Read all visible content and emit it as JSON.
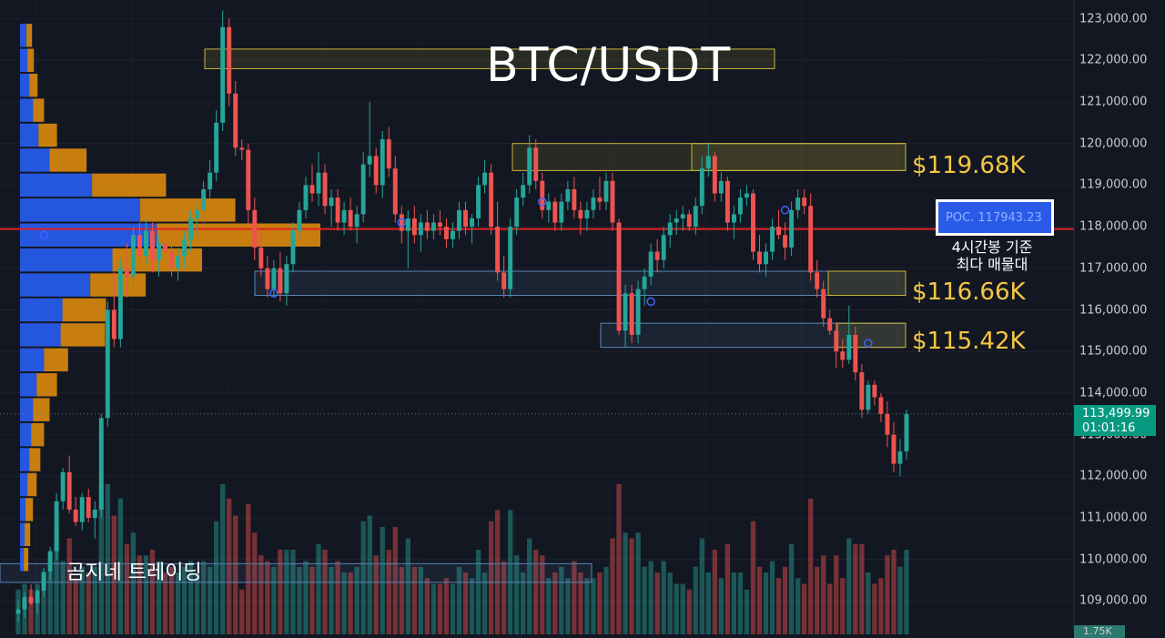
{
  "chart_data": {
    "type": "candlestick",
    "title": "BTC/USDT",
    "y_axis_ticks": [
      "123,000.00",
      "122,000.00",
      "121,000.00",
      "120,000.00",
      "119,000.00",
      "118,000.00",
      "117,000.00",
      "116,000.00",
      "115,000.00",
      "114,000.00",
      "113,000.00",
      "112,000.00",
      "111,000.00",
      "110,000.00",
      "109,000.00"
    ],
    "y_tick_values": [
      123000,
      122000,
      121000,
      120000,
      119000,
      118000,
      117000,
      116000,
      115000,
      114000,
      113000,
      112000,
      111000,
      110000,
      109000
    ],
    "ylim": [
      108200,
      123450
    ],
    "last_price": "113,499.99",
    "countdown": "01:01:16",
    "volume_tag": "1.75K",
    "poc_label": "POC. 117943.23",
    "poc_value": 117943.23,
    "poc_note_line1": "4시간봉 기준",
    "poc_note_line2": "최다 매물대",
    "zone_labels": [
      {
        "text": "$119.68K",
        "price": 119680
      },
      {
        "text": "$116.66K",
        "price": 116660
      },
      {
        "text": "$115.42K",
        "price": 115420
      }
    ],
    "watermark": "곰지네 트레이딩",
    "candles": [
      [
        108700,
        109000,
        108500,
        108800
      ],
      [
        108800,
        109200,
        108600,
        109100
      ],
      [
        109100,
        109400,
        108900,
        108950
      ],
      [
        108950,
        109300,
        108700,
        109250
      ],
      [
        109250,
        109800,
        109100,
        109700
      ],
      [
        109700,
        110300,
        109500,
        110200
      ],
      [
        110200,
        111600,
        110000,
        111400
      ],
      [
        111400,
        112200,
        111200,
        112100
      ],
      [
        112100,
        112500,
        111100,
        111200
      ],
      [
        111200,
        111500,
        110800,
        110900
      ],
      [
        110900,
        111600,
        110700,
        111500
      ],
      [
        111500,
        111700,
        110900,
        111000
      ],
      [
        111000,
        111400,
        110500,
        111200
      ],
      [
        111200,
        113500,
        111000,
        113400
      ],
      [
        113400,
        116200,
        113200,
        116000
      ],
      [
        116000,
        116900,
        115100,
        115300
      ],
      [
        115300,
        117200,
        115100,
        117000
      ],
      [
        117000,
        117600,
        116300,
        116800
      ],
      [
        116800,
        118000,
        116500,
        117800
      ],
      [
        117800,
        118100,
        117000,
        117300
      ],
      [
        117300,
        118200,
        117100,
        117900
      ],
      [
        117900,
        118100,
        116900,
        117200
      ],
      [
        117200,
        117800,
        116800,
        117600
      ],
      [
        117600,
        118000,
        117200,
        117400
      ],
      [
        117400,
        117700,
        116800,
        117000
      ],
      [
        117000,
        117500,
        116700,
        117300
      ],
      [
        117300,
        117900,
        117000,
        117700
      ],
      [
        117700,
        118400,
        117400,
        118200
      ],
      [
        118200,
        118600,
        117800,
        118400
      ],
      [
        118400,
        119100,
        118100,
        118900
      ],
      [
        118900,
        119600,
        118700,
        119300
      ],
      [
        119300,
        120800,
        119100,
        120500
      ],
      [
        120500,
        123200,
        120300,
        122800
      ],
      [
        122800,
        123000,
        120900,
        121200
      ],
      [
        121200,
        121500,
        119700,
        119900
      ],
      [
        119900,
        120100,
        119600,
        119850
      ],
      [
        119850,
        120000,
        118000,
        118400
      ],
      [
        118400,
        118700,
        117200,
        117500
      ],
      [
        117500,
        117900,
        116800,
        117000
      ],
      [
        117000,
        117300,
        116300,
        116500
      ],
      [
        116500,
        117200,
        116300,
        117000
      ],
      [
        117000,
        117400,
        116200,
        116400
      ],
      [
        116400,
        117300,
        116100,
        117100
      ],
      [
        117100,
        118100,
        116900,
        117900
      ],
      [
        117900,
        118600,
        117700,
        118400
      ],
      [
        118400,
        119200,
        118200,
        119000
      ],
      [
        119000,
        119500,
        118600,
        118800
      ],
      [
        118800,
        119800,
        118500,
        119300
      ],
      [
        119300,
        119500,
        118300,
        118500
      ],
      [
        118500,
        118900,
        118000,
        118700
      ],
      [
        118700,
        118900,
        117900,
        118100
      ],
      [
        118100,
        118600,
        117800,
        118400
      ],
      [
        118400,
        118700,
        117900,
        118000
      ],
      [
        118000,
        118500,
        117600,
        118300
      ],
      [
        118300,
        119800,
        118100,
        119500
      ],
      [
        119500,
        121000,
        119200,
        119700
      ],
      [
        119700,
        119900,
        118800,
        119000
      ],
      [
        119000,
        120300,
        118700,
        120100
      ],
      [
        120100,
        120400,
        119200,
        119400
      ],
      [
        119400,
        119700,
        118100,
        118300
      ],
      [
        118300,
        118500,
        117600,
        117900
      ],
      [
        117900,
        118400,
        117000,
        118200
      ],
      [
        118200,
        118500,
        117600,
        117800
      ],
      [
        117800,
        118300,
        117400,
        118100
      ],
      [
        118100,
        118400,
        117700,
        117900
      ],
      [
        117900,
        118300,
        117700,
        118100
      ],
      [
        118100,
        118400,
        117800,
        118000
      ],
      [
        118000,
        118200,
        117500,
        117700
      ],
      [
        117700,
        118100,
        117500,
        117900
      ],
      [
        117900,
        118600,
        117700,
        118400
      ],
      [
        118400,
        118600,
        117800,
        118000
      ],
      [
        118000,
        118300,
        117600,
        118200
      ],
      [
        118200,
        119200,
        118000,
        119000
      ],
      [
        119000,
        119600,
        118800,
        119300
      ],
      [
        119300,
        119500,
        117800,
        118000
      ],
      [
        118000,
        118600,
        116700,
        116900
      ],
      [
        116900,
        117300,
        116300,
        116500
      ],
      [
        116500,
        118200,
        116300,
        118000
      ],
      [
        118000,
        118900,
        117800,
        118700
      ],
      [
        118700,
        119300,
        118500,
        119000
      ],
      [
        119000,
        120200,
        118800,
        119900
      ],
      [
        119900,
        120100,
        118900,
        119100
      ],
      [
        119100,
        119300,
        118200,
        118400
      ],
      [
        118400,
        118800,
        118100,
        118600
      ],
      [
        118600,
        118700,
        117900,
        118100
      ],
      [
        118100,
        118800,
        117900,
        118600
      ],
      [
        118600,
        119100,
        118400,
        118900
      ],
      [
        118900,
        119200,
        118200,
        118400
      ],
      [
        118400,
        118600,
        117800,
        118200
      ],
      [
        118200,
        118600,
        117900,
        118400
      ],
      [
        118400,
        118900,
        118200,
        118700
      ],
      [
        118700,
        119200,
        118400,
        118600
      ],
      [
        118600,
        119300,
        118400,
        119100
      ],
      [
        119100,
        119300,
        117900,
        118100
      ],
      [
        118100,
        118200,
        115400,
        115500
      ],
      [
        115500,
        116600,
        115100,
        116400
      ],
      [
        116400,
        116600,
        115200,
        115400
      ],
      [
        115400,
        116700,
        115200,
        116500
      ],
      [
        116500,
        117000,
        116100,
        116800
      ],
      [
        116800,
        117600,
        116600,
        117400
      ],
      [
        117400,
        117700,
        116900,
        117200
      ],
      [
        117200,
        118000,
        117000,
        117800
      ],
      [
        117800,
        118300,
        117500,
        118100
      ],
      [
        118100,
        118400,
        117800,
        118200
      ],
      [
        118200,
        118500,
        117900,
        118300
      ],
      [
        118300,
        118400,
        117900,
        118000
      ],
      [
        118000,
        118700,
        117800,
        118500
      ],
      [
        118500,
        119700,
        118300,
        119400
      ],
      [
        119400,
        120000,
        119200,
        119700
      ],
      [
        119700,
        119800,
        118600,
        118800
      ],
      [
        118800,
        119300,
        118600,
        119100
      ],
      [
        119100,
        119200,
        117900,
        118100
      ],
      [
        118100,
        118500,
        117700,
        118300
      ],
      [
        118300,
        118900,
        118100,
        118700
      ],
      [
        118700,
        119000,
        118500,
        118800
      ],
      [
        118800,
        118900,
        117200,
        117400
      ],
      [
        117400,
        117800,
        116900,
        117100
      ],
      [
        117100,
        117600,
        116800,
        117400
      ],
      [
        117400,
        118200,
        117200,
        118000
      ],
      [
        118000,
        118400,
        117700,
        117800
      ],
      [
        117800,
        118100,
        117200,
        117500
      ],
      [
        117500,
        118600,
        117300,
        118400
      ],
      [
        118400,
        118900,
        118200,
        118700
      ],
      [
        118700,
        118900,
        118300,
        118500
      ],
      [
        118500,
        118800,
        116700,
        116900
      ],
      [
        116900,
        117200,
        116300,
        116500
      ],
      [
        116500,
        116700,
        115600,
        115800
      ],
      [
        115800,
        116000,
        115400,
        115500
      ],
      [
        115500,
        115700,
        114600,
        115000
      ],
      [
        115000,
        115300,
        114600,
        114800
      ],
      [
        114800,
        116100,
        114700,
        115400
      ],
      [
        115400,
        115600,
        114300,
        114500
      ],
      [
        114500,
        114700,
        113400,
        113600
      ],
      [
        113600,
        114300,
        113500,
        114200
      ],
      [
        114200,
        114300,
        113700,
        113900
      ],
      [
        113900,
        114000,
        113300,
        113500
      ],
      [
        113500,
        113800,
        112700,
        113000
      ],
      [
        113000,
        113300,
        112100,
        112300
      ],
      [
        112300,
        112900,
        112000,
        112600
      ],
      [
        112600,
        113600,
        112400,
        113500
      ]
    ],
    "volume_profile": [
      {
        "price": 122600,
        "buy": 7,
        "sell": 6
      },
      {
        "price": 122000,
        "buy": 8,
        "sell": 7
      },
      {
        "price": 121400,
        "buy": 10,
        "sell": 9
      },
      {
        "price": 120800,
        "buy": 14,
        "sell": 12
      },
      {
        "price": 120200,
        "buy": 20,
        "sell": 20
      },
      {
        "price": 119600,
        "buy": 32,
        "sell": 40
      },
      {
        "price": 119000,
        "buy": 78,
        "sell": 80
      },
      {
        "price": 118400,
        "buy": 130,
        "sell": 103
      },
      {
        "price": 117800,
        "buy": 148,
        "sell": 177
      },
      {
        "price": 117200,
        "buy": 100,
        "sell": 97
      },
      {
        "price": 116600,
        "buy": 76,
        "sell": 60
      },
      {
        "price": 116000,
        "buy": 46,
        "sell": 47
      },
      {
        "price": 115400,
        "buy": 44,
        "sell": 48
      },
      {
        "price": 114800,
        "buy": 26,
        "sell": 26
      },
      {
        "price": 114200,
        "buy": 18,
        "sell": 22
      },
      {
        "price": 113600,
        "buy": 14,
        "sell": 18
      },
      {
        "price": 113000,
        "buy": 12,
        "sell": 14
      },
      {
        "price": 112400,
        "buy": 10,
        "sell": 12
      },
      {
        "price": 111800,
        "buy": 8,
        "sell": 10
      },
      {
        "price": 111200,
        "buy": 6,
        "sell": 8
      },
      {
        "price": 110600,
        "buy": 5,
        "sell": 6
      },
      {
        "price": 110000,
        "buy": 4,
        "sell": 5
      }
    ]
  },
  "colors": {
    "up": "#26a69a",
    "down": "#ef5350",
    "profile_buy": "#2962ff",
    "profile_sell": "#e8900c",
    "poc_line": "#e22121",
    "zone_yellow": "#c9b43a",
    "zone_blue": "#5a86b8"
  }
}
